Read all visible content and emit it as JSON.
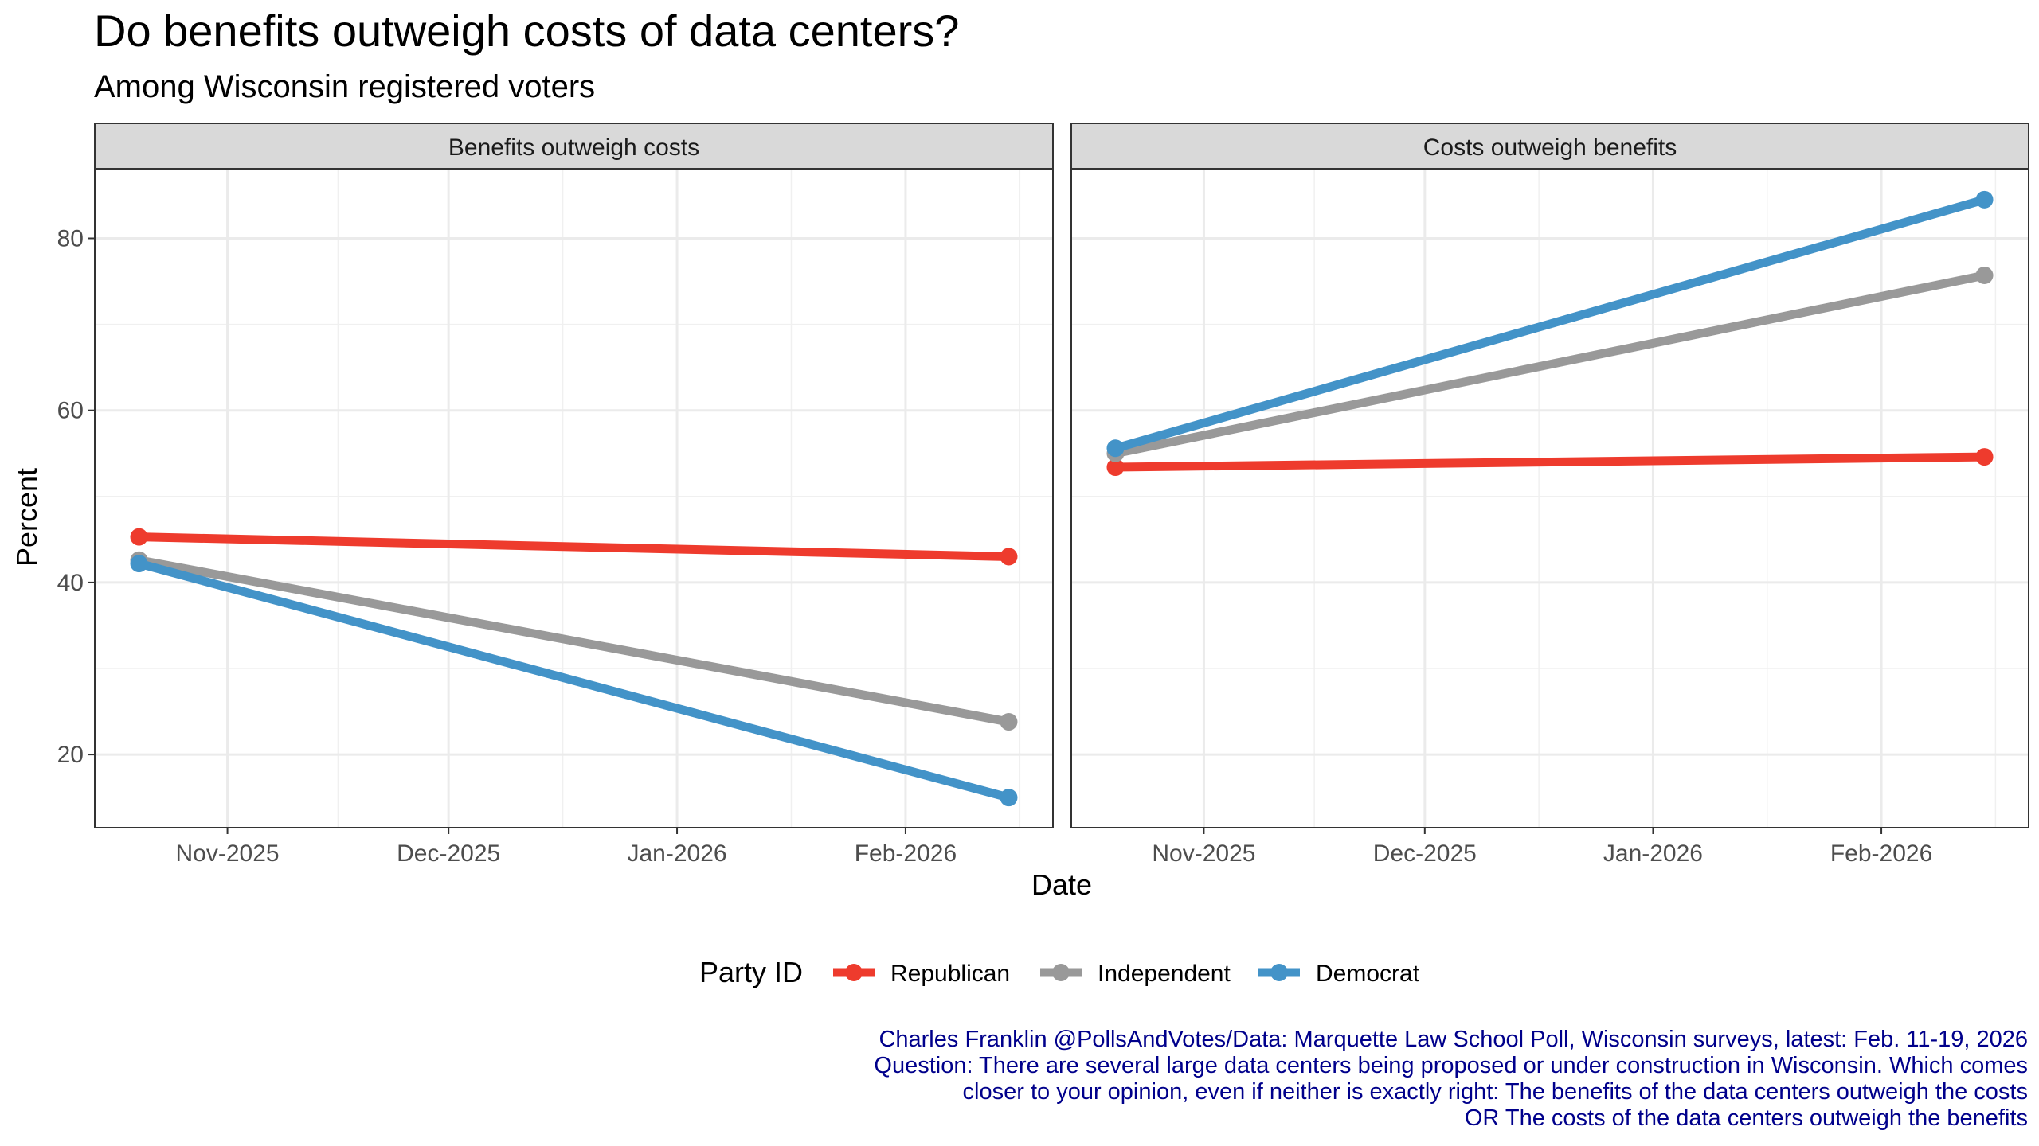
{
  "title": "Do benefits outweigh costs of data centers?",
  "subtitle": "Among Wisconsin registered voters",
  "chart_data": {
    "type": "line",
    "facets": [
      {
        "label": "Benefits outweigh costs",
        "series": [
          {
            "name": "Republican",
            "points": [
              [
                "2025-10-20",
                45.3
              ],
              [
                "2026-02-15",
                43.0
              ]
            ]
          },
          {
            "name": "Independent",
            "points": [
              [
                "2025-10-20",
                42.6
              ],
              [
                "2026-02-15",
                23.8
              ]
            ]
          },
          {
            "name": "Democrat",
            "points": [
              [
                "2025-10-20",
                42.2
              ],
              [
                "2026-02-15",
                15.0
              ]
            ]
          }
        ]
      },
      {
        "label": "Costs outweigh benefits",
        "series": [
          {
            "name": "Republican",
            "points": [
              [
                "2025-10-20",
                53.4
              ],
              [
                "2026-02-15",
                54.6
              ]
            ]
          },
          {
            "name": "Independent",
            "points": [
              [
                "2025-10-20",
                55.0
              ],
              [
                "2026-02-15",
                75.7
              ]
            ]
          },
          {
            "name": "Democrat",
            "points": [
              [
                "2025-10-20",
                55.6
              ],
              [
                "2026-02-15",
                84.5
              ]
            ]
          }
        ]
      }
    ],
    "xlabel": "Date",
    "ylabel": "Percent",
    "x_ticks": [
      {
        "date": "2025-11-01",
        "label": "Nov-2025"
      },
      {
        "date": "2025-12-01",
        "label": "Dec-2025"
      },
      {
        "date": "2026-01-01",
        "label": "Jan-2026"
      },
      {
        "date": "2026-02-01",
        "label": "Feb-2026"
      }
    ],
    "x_range": [
      "2025-10-14",
      "2026-02-21"
    ],
    "y_ticks": [
      20,
      40,
      60,
      80
    ],
    "ylim": [
      11.5,
      88
    ],
    "legend_title": "Party ID",
    "legend_position": "bottom",
    "colors": {
      "Republican": "#EE3B2D",
      "Independent": "#999999",
      "Democrat": "#4393C8"
    }
  },
  "caption": [
    "Charles Franklin @PollsAndVotes/Data: Marquette Law School Poll, Wisconsin surveys, latest: Feb. 11-19, 2026",
    "Question: There are several large data centers being proposed or under construction in Wisconsin. Which comes",
    "closer to your opinion, even if neither is exactly right: The benefits of the data centers outweigh the costs",
    "OR The costs of the data centers outweigh the benefits"
  ]
}
